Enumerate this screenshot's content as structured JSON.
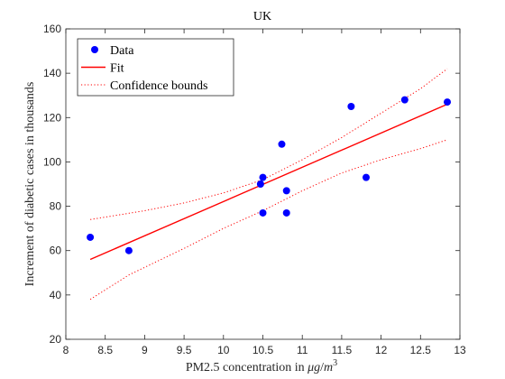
{
  "chart_data": {
    "type": "scatter",
    "title": "UK",
    "xlabel_prefix": "PM2.5 concentration in ",
    "xlabel_unit_mu": "μ",
    "xlabel_unit_g": "g",
    "xlabel_unit_slash": "/",
    "xlabel_unit_m": "m",
    "xlabel_unit_exp": "3",
    "ylabel": "Increment of diabetic cases in thousands",
    "xlim": [
      8,
      13
    ],
    "ylim": [
      20,
      160
    ],
    "xticks": [
      "8",
      "8.5",
      "9",
      "9.5",
      "10",
      "10.5",
      "11",
      "11.5",
      "12",
      "12.5",
      "13"
    ],
    "yticks": [
      "20",
      "40",
      "60",
      "80",
      "100",
      "120",
      "140",
      "160"
    ],
    "grid": false,
    "legend_position": "top-left",
    "series": [
      {
        "name": "Data",
        "kind": "markers",
        "color": "#0000ff",
        "points": [
          {
            "x": 8.31,
            "y": 66
          },
          {
            "x": 8.8,
            "y": 60
          },
          {
            "x": 10.47,
            "y": 90
          },
          {
            "x": 10.5,
            "y": 93
          },
          {
            "x": 10.5,
            "y": 77
          },
          {
            "x": 10.74,
            "y": 108
          },
          {
            "x": 10.8,
            "y": 87
          },
          {
            "x": 10.8,
            "y": 77
          },
          {
            "x": 11.62,
            "y": 125
          },
          {
            "x": 11.81,
            "y": 93
          },
          {
            "x": 12.3,
            "y": 128
          },
          {
            "x": 12.84,
            "y": 127
          }
        ]
      },
      {
        "name": "Fit",
        "kind": "line",
        "color": "#ff0000",
        "dash": "solid",
        "points": [
          {
            "x": 8.31,
            "y": 56
          },
          {
            "x": 12.84,
            "y": 126
          }
        ]
      },
      {
        "name": "Confidence bounds",
        "kind": "line",
        "color": "#ff0000",
        "dash": "dotted",
        "points": [
          {
            "x": 8.31,
            "y": 74
          },
          {
            "x": 9.0,
            "y": 78
          },
          {
            "x": 9.5,
            "y": 81.5
          },
          {
            "x": 10.0,
            "y": 86
          },
          {
            "x": 10.5,
            "y": 92
          },
          {
            "x": 11.0,
            "y": 101
          },
          {
            "x": 11.5,
            "y": 111
          },
          {
            "x": 12.0,
            "y": 122
          },
          {
            "x": 12.5,
            "y": 133
          },
          {
            "x": 12.84,
            "y": 142
          }
        ]
      },
      {
        "name": "",
        "kind": "line",
        "color": "#ff0000",
        "dash": "dotted",
        "points": [
          {
            "x": 8.31,
            "y": 38
          },
          {
            "x": 8.8,
            "y": 49
          },
          {
            "x": 9.5,
            "y": 61
          },
          {
            "x": 10.0,
            "y": 70
          },
          {
            "x": 10.5,
            "y": 78
          },
          {
            "x": 11.0,
            "y": 87
          },
          {
            "x": 11.5,
            "y": 95
          },
          {
            "x": 12.0,
            "y": 101
          },
          {
            "x": 12.5,
            "y": 106
          },
          {
            "x": 12.84,
            "y": 110
          }
        ]
      }
    ],
    "legend": [
      {
        "label": "Data",
        "kind": "marker",
        "color": "#0000ff"
      },
      {
        "label": "Fit",
        "kind": "line",
        "dash": "solid",
        "color": "#ff0000"
      },
      {
        "label": "Confidence bounds",
        "kind": "line",
        "dash": "dotted",
        "color": "#ff0000"
      }
    ]
  }
}
